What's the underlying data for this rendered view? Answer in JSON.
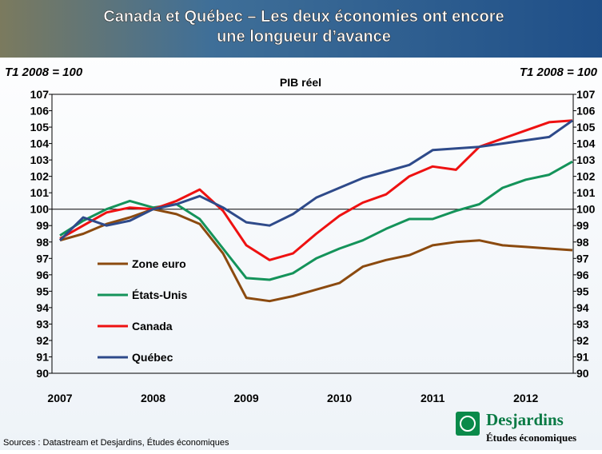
{
  "chart_data": {
    "type": "line",
    "title": [
      "Canada et Québec – Les deux économies ont encore",
      "une longueur d’avance"
    ],
    "subtitle": "PIB réel",
    "y_label": "T1 2008 = 100",
    "y2_label": "T1 2008 = 100",
    "categories": [
      "2007",
      null,
      null,
      null,
      "2008",
      null,
      null,
      null,
      "2009",
      null,
      null,
      null,
      "2010",
      null,
      null,
      null,
      "2011",
      null,
      null,
      null,
      "2012",
      null,
      null
    ],
    "series": [
      {
        "name": "Zone euro",
        "color": "#8b4a0f",
        "values": [
          98.1,
          98.5,
          99.1,
          99.5,
          100.0,
          99.7,
          99.1,
          97.3,
          94.6,
          94.4,
          94.7,
          95.1,
          95.5,
          96.5,
          96.9,
          97.2,
          97.8,
          98.0,
          98.1,
          97.8,
          97.7,
          97.6,
          97.5
        ]
      },
      {
        "name": "États-Unis",
        "color": "#14935a",
        "values": [
          98.4,
          99.3,
          100.0,
          100.5,
          100.1,
          100.3,
          99.4,
          97.6,
          95.8,
          95.7,
          96.1,
          97.0,
          97.6,
          98.1,
          98.8,
          99.4,
          99.4,
          99.9,
          100.3,
          101.3,
          101.8,
          102.1,
          102.9
        ]
      },
      {
        "name": "Canada",
        "color": "#ee1111",
        "values": [
          98.2,
          99.0,
          99.8,
          100.1,
          100.0,
          100.5,
          101.2,
          99.9,
          97.8,
          96.9,
          97.3,
          98.5,
          99.6,
          100.4,
          100.9,
          102.0,
          102.6,
          102.4,
          103.8,
          104.3,
          104.8,
          105.3,
          105.4
        ]
      },
      {
        "name": "Québec",
        "color": "#2e4a8a",
        "values": [
          98.1,
          99.5,
          99.0,
          99.3,
          100.0,
          100.3,
          100.8,
          100.1,
          99.2,
          99.0,
          99.7,
          100.7,
          101.3,
          101.9,
          102.3,
          102.7,
          103.6,
          103.7,
          103.8,
          104.0,
          104.2,
          104.4,
          105.4
        ]
      }
    ],
    "ylim": [
      90,
      107
    ],
    "yticks": [
      90,
      91,
      92,
      93,
      94,
      95,
      96,
      97,
      98,
      99,
      100,
      101,
      102,
      103,
      104,
      105,
      106,
      107
    ],
    "y2lim": [
      90,
      107
    ],
    "y2ticks": [
      90,
      91,
      92,
      93,
      94,
      95,
      96,
      97,
      98,
      99,
      100,
      101,
      102,
      103,
      104,
      105,
      106,
      107
    ],
    "reference_line": 100,
    "source": "Sources : Datastream et Desjardins, Études économiques",
    "logo": {
      "name": "Desjardins",
      "subtitle": "Études économiques"
    }
  }
}
